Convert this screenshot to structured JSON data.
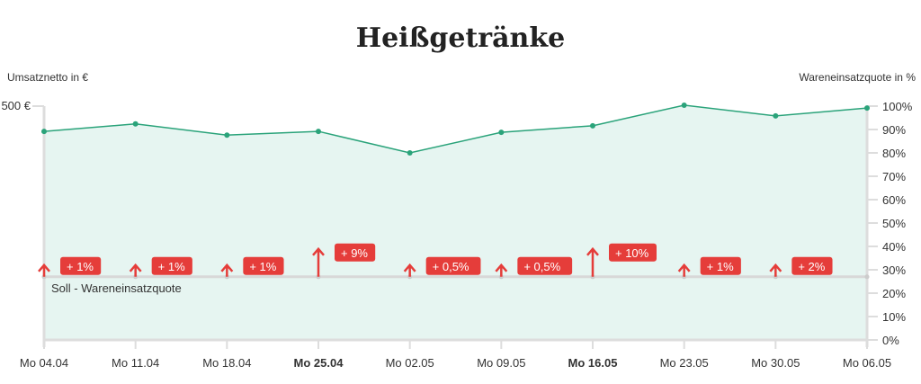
{
  "chart_data": {
    "type": "area",
    "title": "Heißgetränke",
    "ylabel_left": "Umsatznetto in €",
    "ylabel_right": "Wareneinsatzquote in %",
    "left_ticks": [
      "500 €"
    ],
    "ylim_left": [
      0,
      500
    ],
    "right_ticks": [
      "0%",
      "10%",
      "20%",
      "30%",
      "40%",
      "50%",
      "60%",
      "70%",
      "80%",
      "90%",
      "100%"
    ],
    "ylim_right": [
      0,
      100
    ],
    "categories": [
      "Mo 04.04",
      "Mo 11.04",
      "Mo 18.04",
      "Mo 25.04",
      "Mo 02.05",
      "Mo 09.05",
      "Mo 16.05",
      "Mo 23.05",
      "Mo 30.05",
      "Mo 06.05"
    ],
    "bold_categories": [
      "Mo 25.04",
      "Mo 16.05"
    ],
    "series": [
      {
        "values": [
          446,
          462,
          438,
          446,
          400,
          444,
          458,
          502,
          479,
          496
        ],
        "color": "#2aa37a",
        "fill": "#e6f5f1"
      }
    ],
    "target_line": {
      "label": "Soll - Wareneinsatzquote",
      "value": 27
    },
    "deviations": [
      {
        "label": "+ 1%",
        "value": 1
      },
      {
        "label": "+ 1%",
        "value": 1
      },
      {
        "label": "+ 1%",
        "value": 1
      },
      {
        "label": "+ 9%",
        "value": 9
      },
      {
        "label": "+ 0,5%",
        "value": 0.5
      },
      {
        "label": "+ 0,5%",
        "value": 0.5
      },
      {
        "label": "+ 10%",
        "value": 10
      },
      {
        "label": "+ 1%",
        "value": 1
      },
      {
        "label": "+ 2%",
        "value": 2
      },
      null
    ],
    "deviation_color": "#e53d3a",
    "grid": false
  }
}
